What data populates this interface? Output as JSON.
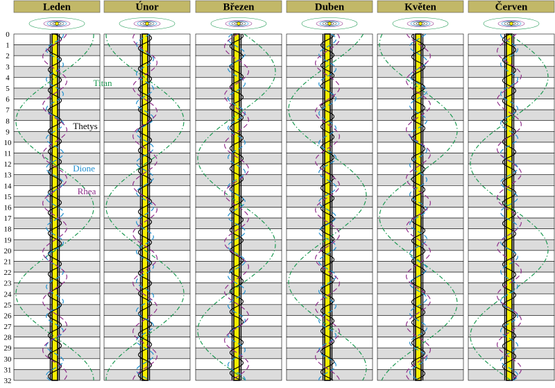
{
  "chart_data": {
    "type": "line",
    "panels": [
      "Leden",
      "Únor",
      "Březen",
      "Duben",
      "Květen",
      "Červen"
    ],
    "day_ticks": [
      "0",
      "1",
      "2",
      "3",
      "4",
      "5",
      "6",
      "7",
      "8",
      "9",
      "10",
      "11",
      "12",
      "13",
      "14",
      "15",
      "16",
      "17",
      "18",
      "19",
      "20",
      "21",
      "22",
      "23",
      "24",
      "25",
      "26",
      "27",
      "28",
      "29",
      "30",
      "31",
      "32"
    ],
    "ylim": [
      0,
      32
    ],
    "series": [
      {
        "name": "Titan",
        "color": "#1a9850",
        "period_days": 15.945,
        "amplitude": 1.0,
        "phase_days": [
          3.9,
          11.9,
          0.5,
          5.0,
          11.0,
          0.0
        ]
      },
      {
        "name": "Thetys",
        "color": "#000000",
        "period_days": 1.888,
        "amplitude": 0.17,
        "phase_days": [
          0.0,
          0.1,
          0.3,
          0.4,
          1.2,
          0.9
        ]
      },
      {
        "name": "Dione",
        "color": "#1f8fd0",
        "period_days": 2.737,
        "amplitude": 0.22,
        "phase_days": [
          0.6,
          1.1,
          1.6,
          0.2,
          0.9,
          2.0
        ]
      },
      {
        "name": "Rhea",
        "color": "#8e2d8a",
        "period_days": 4.518,
        "amplitude": 0.31,
        "phase_days": [
          1.3,
          3.0,
          2.2,
          0.7,
          3.6,
          1.8
        ]
      }
    ],
    "legend_panel": "Leden",
    "colors": {
      "header_bg": "#c2b868",
      "stripe": "#dcdcdc",
      "planet": "#f6ee00",
      "ring_outline": "#000000"
    }
  }
}
